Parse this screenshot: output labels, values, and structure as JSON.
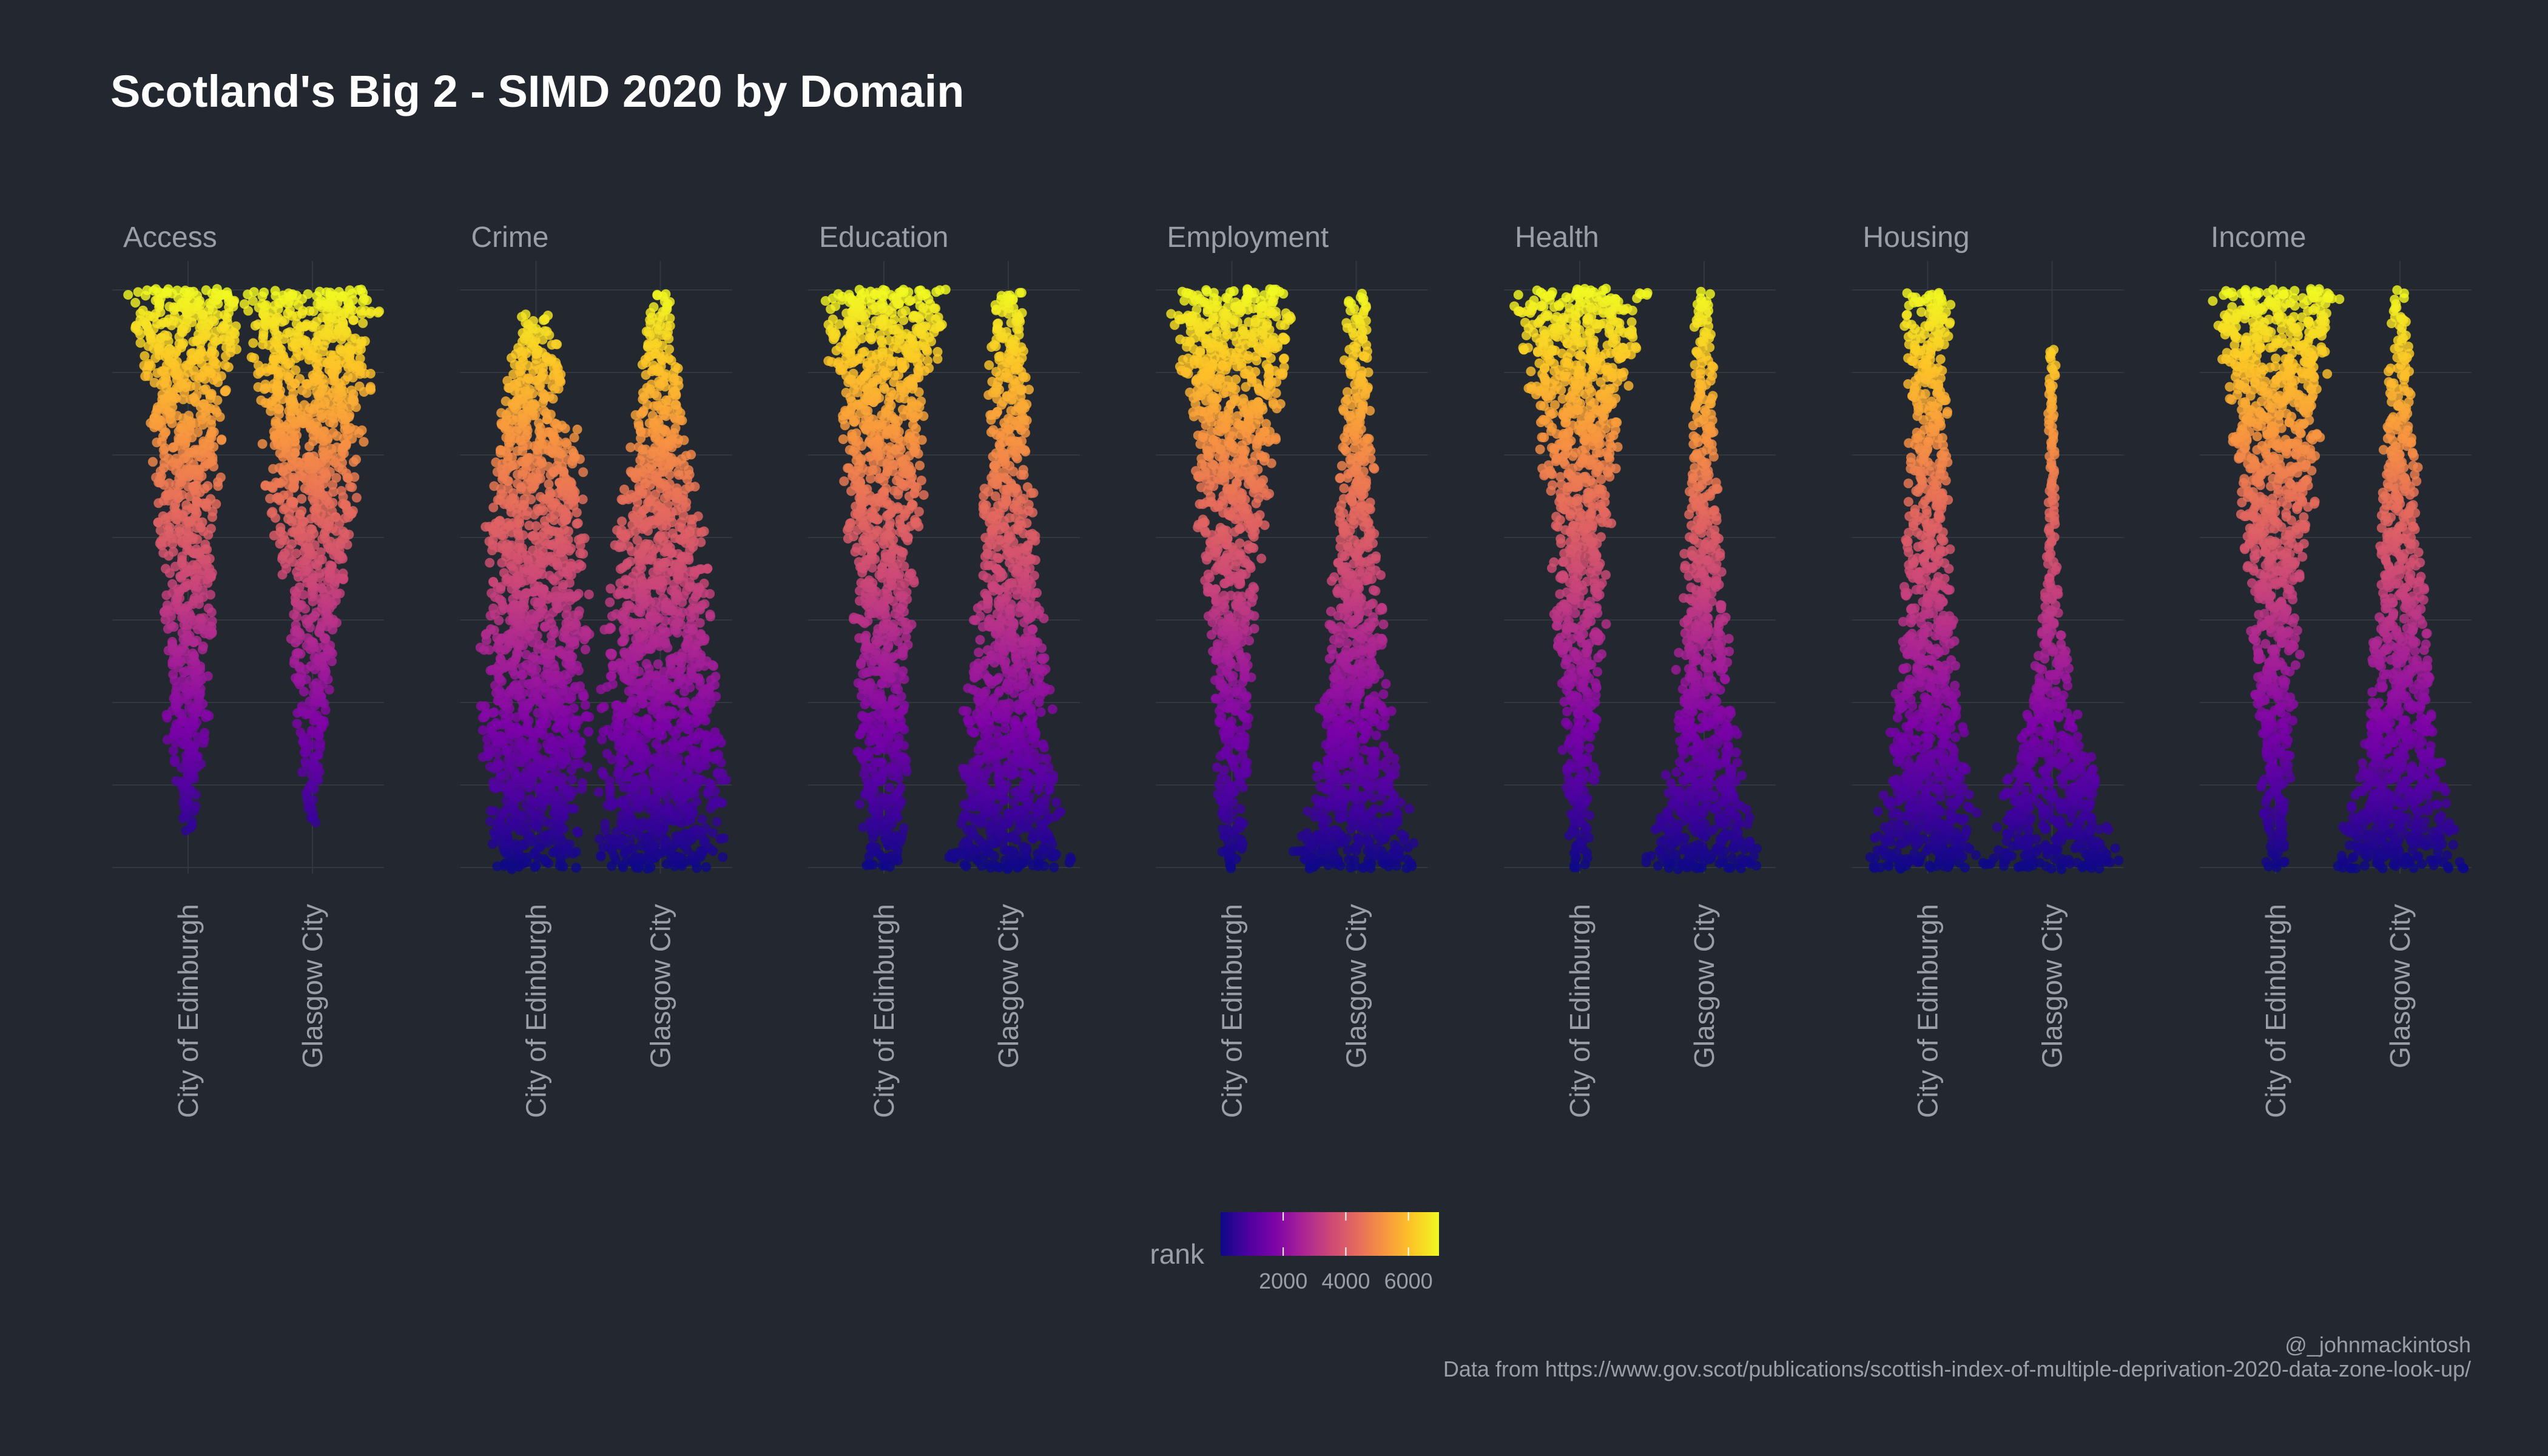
{
  "chart_data": {
    "type": "beeswarm",
    "title": "Scotland's Big 2 - SIMD 2020 by Domain",
    "xlabel": "",
    "ylabel": "",
    "color_variable": "rank",
    "color_scale": "plasma",
    "rank_range": [
      1,
      6976
    ],
    "legend": {
      "title": "rank",
      "position": "bottom",
      "ticks": [
        2000,
        4000,
        6000
      ],
      "tick_labels": [
        "2000",
        "4000",
        "6000"
      ]
    },
    "councils": [
      "City of Edinburgh",
      "Glasgow City"
    ],
    "facets": [
      {
        "domain": "Access",
        "series": [
          {
            "council": "City of Edinburgh",
            "min_rank": 450,
            "max_rank": 6976,
            "density": [
              0.1,
              0.2,
              0.35,
              0.3,
              0.4,
              0.35,
              0.45,
              0.5,
              0.55,
              0.6,
              0.8,
              1.0
            ]
          },
          {
            "council": "Glasgow City",
            "min_rank": 550,
            "max_rank": 6976,
            "density": [
              0.05,
              0.15,
              0.25,
              0.3,
              0.4,
              0.5,
              0.6,
              0.7,
              0.8,
              0.9,
              0.95,
              1.0
            ]
          }
        ]
      },
      {
        "domain": "Crime",
        "series": [
          {
            "council": "City of Edinburgh",
            "min_rank": 1,
            "max_rank": 6700,
            "density": [
              0.6,
              0.7,
              0.8,
              0.85,
              0.85,
              0.8,
              0.8,
              0.75,
              0.7,
              0.6,
              0.4,
              0.2
            ]
          },
          {
            "council": "Glasgow City",
            "min_rank": 1,
            "max_rank": 6950,
            "density": [
              1.0,
              1.0,
              0.95,
              0.9,
              0.85,
              0.8,
              0.7,
              0.6,
              0.45,
              0.35,
              0.25,
              0.15
            ]
          }
        ]
      },
      {
        "domain": "Education",
        "series": [
          {
            "council": "City of Edinburgh",
            "min_rank": 10,
            "max_rank": 6976,
            "density": [
              0.3,
              0.35,
              0.4,
              0.4,
              0.4,
              0.45,
              0.5,
              0.6,
              0.65,
              0.75,
              0.9,
              1.0
            ]
          },
          {
            "council": "Glasgow City",
            "min_rank": 1,
            "max_rank": 6940,
            "density": [
              1.0,
              0.8,
              0.7,
              0.65,
              0.6,
              0.5,
              0.45,
              0.4,
              0.35,
              0.3,
              0.3,
              0.25
            ]
          }
        ]
      },
      {
        "domain": "Employment",
        "series": [
          {
            "council": "City of Edinburgh",
            "min_rank": 10,
            "max_rank": 6976,
            "density": [
              0.2,
              0.2,
              0.25,
              0.3,
              0.35,
              0.4,
              0.45,
              0.55,
              0.65,
              0.75,
              0.9,
              1.0
            ]
          },
          {
            "council": "Glasgow City",
            "min_rank": 1,
            "max_rank": 6960,
            "density": [
              1.0,
              0.8,
              0.65,
              0.55,
              0.45,
              0.4,
              0.35,
              0.3,
              0.25,
              0.2,
              0.18,
              0.15
            ]
          }
        ]
      },
      {
        "domain": "Health",
        "series": [
          {
            "council": "City of Edinburgh",
            "min_rank": 10,
            "max_rank": 6976,
            "density": [
              0.15,
              0.2,
              0.25,
              0.3,
              0.35,
              0.4,
              0.45,
              0.5,
              0.6,
              0.75,
              0.9,
              1.0
            ]
          },
          {
            "council": "Glasgow City",
            "min_rank": 1,
            "max_rank": 6976,
            "density": [
              1.0,
              0.7,
              0.55,
              0.45,
              0.4,
              0.35,
              0.3,
              0.25,
              0.2,
              0.18,
              0.15,
              0.15
            ]
          }
        ]
      },
      {
        "domain": "Housing",
        "series": [
          {
            "council": "City of Edinburgh",
            "min_rank": 1,
            "max_rank": 6950,
            "density": [
              1.0,
              0.75,
              0.6,
              0.5,
              0.45,
              0.4,
              0.35,
              0.3,
              0.3,
              0.3,
              0.35,
              0.4
            ]
          },
          {
            "council": "Glasgow City",
            "min_rank": 1,
            "max_rank": 6300,
            "density": [
              1.0,
              0.85,
              0.65,
              0.45,
              0.3,
              0.18,
              0.12,
              0.08,
              0.06,
              0.05,
              0.04,
              0.03
            ]
          }
        ]
      },
      {
        "domain": "Income",
        "series": [
          {
            "council": "City of Edinburgh",
            "min_rank": 10,
            "max_rank": 6976,
            "density": [
              0.15,
              0.2,
              0.25,
              0.3,
              0.35,
              0.4,
              0.5,
              0.6,
              0.7,
              0.8,
              0.9,
              1.0
            ]
          },
          {
            "council": "Glasgow City",
            "min_rank": 1,
            "max_rank": 6976,
            "density": [
              1.0,
              0.8,
              0.65,
              0.55,
              0.45,
              0.4,
              0.35,
              0.3,
              0.25,
              0.2,
              0.15,
              0.1
            ]
          }
        ]
      }
    ]
  },
  "caption": {
    "credit": "@_johnmackintosh",
    "source": "Data from https://www.gov.scot/publications/scottish-index-of-multiple-deprivation-2020-data-zone-look-up/"
  },
  "colors": {
    "background": "#23272f",
    "grid": "#33383f",
    "text": "#9a9ea6",
    "title": "#ffffff"
  }
}
